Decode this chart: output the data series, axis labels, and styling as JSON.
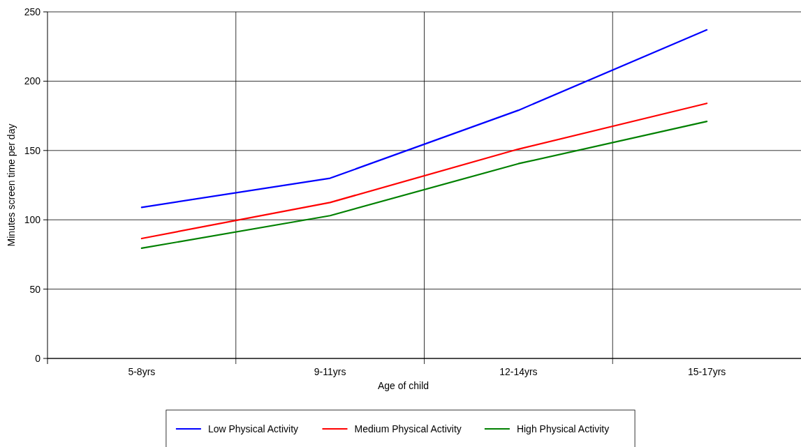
{
  "chart_data": {
    "type": "line",
    "xlabel": "Age of child",
    "ylabel": "Minutes screen time per day",
    "categories": [
      "5-8yrs",
      "9-11yrs",
      "12-14yrs",
      "15-17yrs"
    ],
    "series": [
      {
        "name": "Low Physical Activity",
        "color": "#0000ff",
        "values": [
          109,
          130,
          179,
          237
        ]
      },
      {
        "name": "Medium Physical Activity",
        "color": "#ff0000",
        "values": [
          86.5,
          112.5,
          151,
          184
        ]
      },
      {
        "name": "High Physical Activity",
        "color": "#008000",
        "values": [
          79.5,
          103,
          140.5,
          171
        ]
      }
    ],
    "ylim": [
      0,
      250
    ],
    "yticks": [
      0,
      50,
      100,
      150,
      200,
      250
    ],
    "grid": true,
    "legend": "bottom",
    "marker": "none",
    "line_style": "solid"
  }
}
